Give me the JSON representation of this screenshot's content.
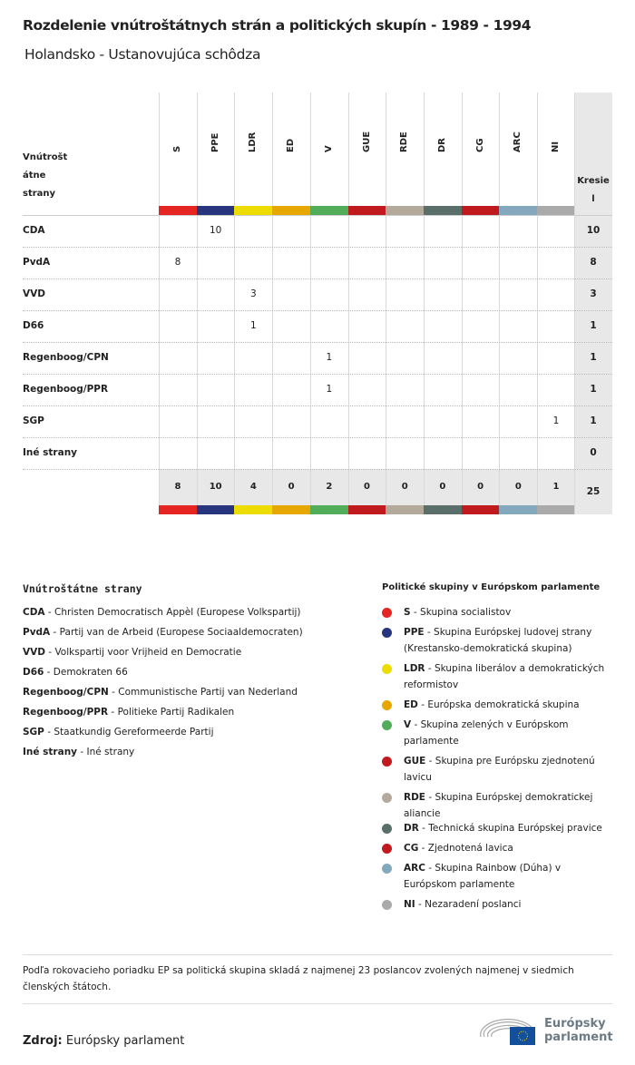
{
  "title": "Rozdelenie vnútroštátnych strán a politických skupín - 1989 - 1994",
  "subtitle": "Holandsko - Ustanovujúca schôdza",
  "chart_data": {
    "type": "table",
    "row_header": "Vnútroštátne strany",
    "row_header_lines": [
      "Vnútrošt",
      "átne",
      "strany"
    ],
    "total_header": "Kresiel",
    "total_header_lines": [
      "Kresie",
      "l"
    ],
    "groups": [
      {
        "code": "S",
        "color": "#e52521"
      },
      {
        "code": "PPE",
        "color": "#27357e"
      },
      {
        "code": "LDR",
        "color": "#ecdc00"
      },
      {
        "code": "ED",
        "color": "#e6a700"
      },
      {
        "code": "V",
        "color": "#52ad5a"
      },
      {
        "code": "GUE",
        "color": "#c0191e"
      },
      {
        "code": "RDE",
        "color": "#b3aa9c"
      },
      {
        "code": "DR",
        "color": "#5a6f6a"
      },
      {
        "code": "CG",
        "color": "#c0191e"
      },
      {
        "code": "ARC",
        "color": "#84a9bf"
      },
      {
        "code": "NI",
        "color": "#aaaaaa"
      }
    ],
    "rows": [
      {
        "party": "CDA",
        "values": {
          "PPE": 10
        },
        "total": 10
      },
      {
        "party": "PvdA",
        "values": {
          "S": 8
        },
        "total": 8
      },
      {
        "party": "VVD",
        "values": {
          "LDR": 3
        },
        "total": 3
      },
      {
        "party": "D66",
        "values": {
          "LDR": 1
        },
        "total": 1
      },
      {
        "party": "Regenboog/CPN",
        "values": {
          "V": 1
        },
        "total": 1
      },
      {
        "party": "Regenboog/PPR",
        "values": {
          "V": 1
        },
        "total": 1
      },
      {
        "party": "SGP",
        "values": {
          "NI": 1
        },
        "total": 1
      },
      {
        "party": "Iné strany",
        "values": {},
        "total": 0
      }
    ],
    "column_totals": [
      8,
      10,
      4,
      0,
      2,
      0,
      0,
      0,
      0,
      0,
      1
    ],
    "grand_total": 25
  },
  "legend_parties": {
    "title": "Vnútroštátne strany",
    "items": [
      {
        "code": "CDA",
        "name": "Christen Democratisch Appèl (Europese Volkspartij)"
      },
      {
        "code": "PvdA",
        "name": "Partij van de Arbeid (Europese Sociaaldemocraten)"
      },
      {
        "code": "VVD",
        "name": "Volkspartij voor Vrijheid en Democratie"
      },
      {
        "code": "D66",
        "name": "Demokraten 66"
      },
      {
        "code": "Regenboog/CPN",
        "name": "Communistische Partij van Nederland"
      },
      {
        "code": "Regenboog/PPR",
        "name": "Politieke Partij Radikalen"
      },
      {
        "code": "SGP",
        "name": "Staatkundig Gereformeerde Partij"
      },
      {
        "code": "Iné strany",
        "name": "Iné strany"
      }
    ]
  },
  "legend_groups": {
    "title": "Politické skupiny v Európskom parlamente",
    "items": [
      {
        "code": "S",
        "name": "Skupina socialistov"
      },
      {
        "code": "PPE",
        "name": "Skupina Európskej ludovej strany (Krestansko-demokratická skupina)"
      },
      {
        "code": "LDR",
        "name": "Skupina liberálov a demokratických reformistov"
      },
      {
        "code": "ED",
        "name": "Európska demokratická skupina"
      },
      {
        "code": "V",
        "name": "Skupina zelených v Európskom parlamente"
      },
      {
        "code": "GUE",
        "name": "Skupina pre Európsku zjednotenú lavicu"
      },
      {
        "code": "RDE",
        "name": "Skupina Európskej demokratickej aliancie"
      },
      {
        "code": "DR",
        "name": "Technická skupina Európskej pravice"
      },
      {
        "code": "CG",
        "name": "Zjednotená lavica"
      },
      {
        "code": "ARC",
        "name": "Skupina Rainbow (Dúha) v Európskom parlamente"
      },
      {
        "code": "NI",
        "name": "Nezaradení poslanci"
      }
    ]
  },
  "footnote": "Podľa rokovacieho poriadku EP sa politická skupina skladá z najmenej 23 poslancov zvolených najmenej v siedmich členských štátoch.",
  "source_label": "Zdroj:",
  "source": "Európsky parlament",
  "logo_text": "Európsky parlament"
}
